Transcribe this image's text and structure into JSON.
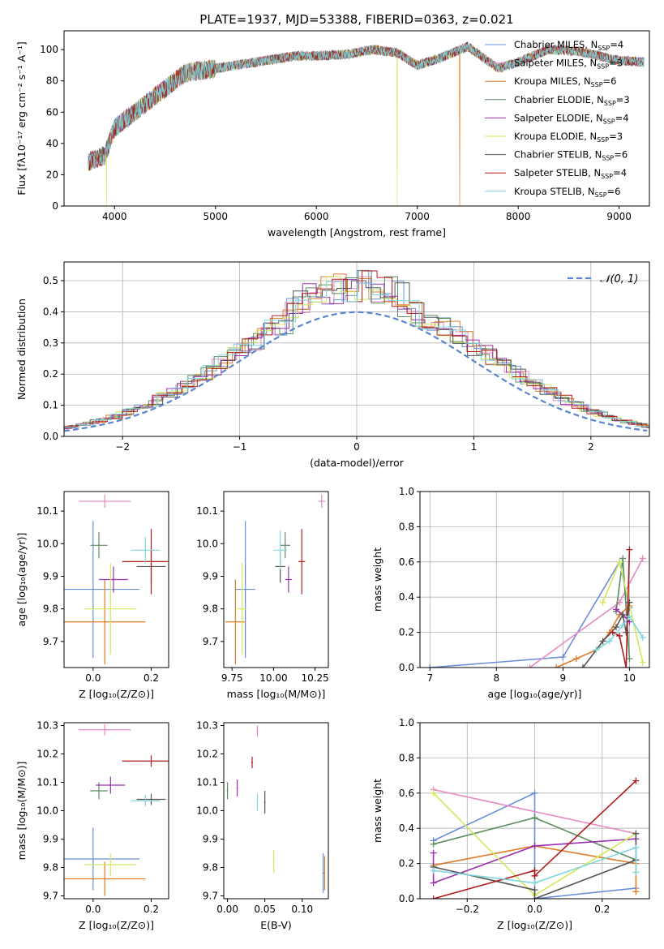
{
  "figure": {
    "title": "PLATE=1937, MJD=53388, FIBERID=0363, z=0.021"
  },
  "colors": {
    "Chabrier MILES": "#6a8fd8",
    "Salpeter MILES": "#e78ac3",
    "Kroupa MILES": "#e07b2a",
    "Chabrier ELODIE": "#5e8c61",
    "Salpeter ELODIE": "#9b30b0",
    "Kroupa ELODIE": "#d4e85c",
    "Chabrier STELIB": "#555555",
    "Salpeter STELIB": "#b01c1c",
    "Kroupa STELIB": "#7fd6dc"
  },
  "chart_data": [
    {
      "id": "spectrum",
      "type": "line",
      "title": "PLATE=1937, MJD=53388, FIBERID=0363, z=0.021",
      "xlabel": "wavelength [Angstrom, rest frame]",
      "ylabel": "Flux [fλ10⁻¹⁷ erg cm⁻² s⁻¹ A⁻¹]",
      "xlim": [
        3500,
        9300
      ],
      "ylim": [
        0,
        112
      ],
      "xticks": [
        "4000",
        "5000",
        "6000",
        "7000",
        "8000",
        "9000"
      ],
      "yticks": [
        "0",
        "20",
        "40",
        "60",
        "80",
        "100"
      ],
      "legend_position": "top-right",
      "grid": false,
      "legend": [
        {
          "label": "Chabrier MILES, N",
          "sub": "SSP",
          "tail": "=4"
        },
        {
          "label": "Salpeter MILES, N",
          "sub": "SSP",
          "tail": "=3"
        },
        {
          "label": "Kroupa MILES, N",
          "sub": "SSP",
          "tail": "=6"
        },
        {
          "label": "Chabrier ELODIE, N",
          "sub": "SSP",
          "tail": "=3"
        },
        {
          "label": "Salpeter ELODIE, N",
          "sub": "SSP",
          "tail": "=4"
        },
        {
          "label": "Kroupa ELODIE, N",
          "sub": "SSP",
          "tail": "=3"
        },
        {
          "label": "Chabrier STELIB, N",
          "sub": "SSP",
          "tail": "=6"
        },
        {
          "label": "Salpeter STELIB, N",
          "sub": "SSP",
          "tail": "=4"
        },
        {
          "label": "Kroupa STELIB, N",
          "sub": "SSP",
          "tail": "=6"
        }
      ],
      "continuum_x": [
        3740,
        3800,
        3900,
        4000,
        4100,
        4300,
        4500,
        4700,
        5000,
        5200,
        5500,
        5800,
        6000,
        6300,
        6563,
        6800,
        7000,
        7200,
        7500,
        7800,
        8000,
        8300,
        8600,
        9000,
        9250
      ],
      "continuum_y": [
        28,
        30,
        32,
        50,
        55,
        65,
        75,
        85,
        88,
        90,
        93,
        96,
        96,
        97,
        100,
        98,
        90,
        94,
        102,
        88,
        92,
        100,
        99,
        93,
        92
      ],
      "dropouts": [
        {
          "series": "Kroupa ELODIE",
          "x": 6800
        },
        {
          "series": "Kroupa MILES",
          "x": 7420
        },
        {
          "series": "Kroupa ELODIE",
          "x": 3920
        }
      ]
    },
    {
      "id": "residuals",
      "type": "histogram",
      "xlabel": "(data-model)/error",
      "ylabel": "Normed distribution",
      "xlim": [
        -2.5,
        2.5
      ],
      "ylim": [
        0,
        0.56
      ],
      "xticks": [
        "−2",
        "−1",
        "0",
        "1",
        "2"
      ],
      "yticks": [
        "0.0",
        "0.1",
        "0.2",
        "0.3",
        "0.4",
        "0.5"
      ],
      "grid": true,
      "legend": "𝒩(0, 1)",
      "legend_position": "top-right",
      "gaussian": {
        "mu": 0,
        "sigma": 1
      }
    },
    {
      "id": "age-vs-z",
      "type": "errorbar",
      "xlabel": "Z [log₁₀(Z/Z⊙)]",
      "ylabel": "age  [log₁₀(age/yr)]",
      "xlim": [
        -0.1,
        0.26
      ],
      "ylim": [
        9.62,
        10.16
      ],
      "xticks": [
        [
          0.0,
          "0.0"
        ],
        [
          0.2,
          "0.2"
        ]
      ],
      "yticks": [
        [
          9.7,
          "9.7"
        ],
        [
          9.8,
          "9.8"
        ],
        [
          9.9,
          "9.9"
        ],
        [
          10.0,
          "10.0"
        ],
        [
          10.1,
          "10.1"
        ]
      ],
      "points": [
        {
          "series": "Chabrier MILES",
          "x": 0.0,
          "y": 9.86,
          "xerr": 0.16,
          "yerr": 0.21
        },
        {
          "series": "Salpeter MILES",
          "x": 0.04,
          "y": 10.13,
          "xerr": 0.09,
          "yerr": 0.02
        },
        {
          "series": "Kroupa MILES",
          "x": 0.04,
          "y": 9.76,
          "xerr": 0.14,
          "yerr": 0.13
        },
        {
          "series": "Chabrier ELODIE",
          "x": 0.02,
          "y": 9.995,
          "xerr": 0.03,
          "yerr": 0.04
        },
        {
          "series": "Salpeter ELODIE",
          "x": 0.07,
          "y": 9.89,
          "xerr": 0.05,
          "yerr": 0.04
        },
        {
          "series": "Kroupa ELODIE",
          "x": 0.06,
          "y": 9.8,
          "xerr": 0.09,
          "yerr": 0.14
        },
        {
          "series": "Chabrier STELIB",
          "x": 0.2,
          "y": 9.93,
          "xerr": 0.05,
          "yerr": 0.05
        },
        {
          "series": "Salpeter STELIB",
          "x": 0.2,
          "y": 9.945,
          "xerr": 0.1,
          "yerr": 0.1
        },
        {
          "series": "Kroupa STELIB",
          "x": 0.18,
          "y": 9.98,
          "xerr": 0.05,
          "yerr": 0.04
        }
      ]
    },
    {
      "id": "age-vs-mass",
      "type": "errorbar",
      "xlabel": "mass [log₁₀(M/M⊙)]",
      "ylabel": "",
      "xlim": [
        9.7,
        10.33
      ],
      "ylim": [
        9.62,
        10.16
      ],
      "xticks": [
        [
          9.75,
          "9.75"
        ],
        [
          10.0,
          "10.00"
        ],
        [
          10.25,
          "10.25"
        ]
      ],
      "yticks": [
        [
          9.7,
          "9.7"
        ],
        [
          9.8,
          "9.8"
        ],
        [
          9.9,
          "9.9"
        ],
        [
          10.0,
          "10.0"
        ],
        [
          10.1,
          "10.1"
        ]
      ],
      "points": [
        {
          "series": "Chabrier MILES",
          "x": 9.83,
          "y": 9.86,
          "xerr": 0.06,
          "yerr": 0.21
        },
        {
          "series": "Salpeter MILES",
          "x": 10.29,
          "y": 10.13,
          "xerr": 0.02,
          "yerr": 0.02
        },
        {
          "series": "Kroupa MILES",
          "x": 9.77,
          "y": 9.76,
          "xerr": 0.06,
          "yerr": 0.13
        },
        {
          "series": "Chabrier ELODIE",
          "x": 10.07,
          "y": 9.995,
          "xerr": 0.03,
          "yerr": 0.04
        },
        {
          "series": "Salpeter ELODIE",
          "x": 10.09,
          "y": 9.89,
          "xerr": 0.02,
          "yerr": 0.04
        },
        {
          "series": "Kroupa ELODIE",
          "x": 9.81,
          "y": 9.8,
          "xerr": 0.03,
          "yerr": 0.14
        },
        {
          "series": "Chabrier STELIB",
          "x": 10.04,
          "y": 9.93,
          "xerr": 0.03,
          "yerr": 0.05
        },
        {
          "series": "Salpeter STELIB",
          "x": 10.17,
          "y": 9.945,
          "xerr": 0.02,
          "yerr": 0.1
        },
        {
          "series": "Kroupa STELIB",
          "x": 10.04,
          "y": 9.98,
          "xerr": 0.04,
          "yerr": 0.06
        }
      ]
    },
    {
      "id": "weight-vs-age",
      "type": "line",
      "xlabel": "age  [log₁₀(age/yr)]",
      "ylabel": "mass weight",
      "xlim": [
        6.85,
        10.3
      ],
      "ylim": [
        0,
        1
      ],
      "xticks": [
        [
          7,
          "7"
        ],
        [
          8,
          "8"
        ],
        [
          9,
          "9"
        ],
        [
          10,
          "10"
        ]
      ],
      "yticks": [
        [
          0,
          "0.0"
        ],
        [
          0.2,
          "0.2"
        ],
        [
          0.4,
          "0.4"
        ],
        [
          0.6,
          "0.6"
        ],
        [
          0.8,
          "0.8"
        ],
        [
          1.0,
          "1.0"
        ]
      ],
      "grid": true,
      "series": [
        {
          "name": "Chabrier MILES",
          "x": [
            7.0,
            9.0,
            9.85,
            10.0
          ],
          "y": [
            0.0,
            0.06,
            0.6,
            0.34
          ]
        },
        {
          "name": "Salpeter MILES",
          "x": [
            8.5,
            9.85,
            10.2
          ],
          "y": [
            0.0,
            0.37,
            0.62
          ]
        },
        {
          "name": "Kroupa MILES",
          "x": [
            8.9,
            9.2,
            9.5,
            9.7,
            9.85,
            10.0
          ],
          "y": [
            0.0,
            0.05,
            0.1,
            0.2,
            0.3,
            0.35
          ]
        },
        {
          "name": "Chabrier ELODIE",
          "x": [
            9.8,
            9.9,
            10.0
          ],
          "y": [
            0.32,
            0.62,
            0.05
          ]
        },
        {
          "name": "Salpeter ELODIE",
          "x": [
            9.8,
            9.9,
            10.0
          ],
          "y": [
            0.33,
            0.3,
            0.26
          ]
        },
        {
          "name": "Kroupa ELODIE",
          "x": [
            9.6,
            9.85,
            10.2
          ],
          "y": [
            0.37,
            0.6,
            0.03
          ]
        },
        {
          "name": "Chabrier STELIB",
          "x": [
            9.3,
            9.6,
            9.8,
            9.9,
            9.95,
            10.0
          ],
          "y": [
            0.0,
            0.15,
            0.23,
            0.3,
            0.2,
            0.37
          ]
        },
        {
          "name": "Salpeter STELIB",
          "x": [
            9.75,
            9.85,
            9.95,
            10.0
          ],
          "y": [
            0.2,
            0.18,
            0.0,
            0.67
          ]
        },
        {
          "name": "Kroupa STELIB",
          "x": [
            9.5,
            9.7,
            9.9,
            10.0,
            10.2
          ],
          "y": [
            0.1,
            0.15,
            0.24,
            0.29,
            0.17
          ]
        }
      ]
    },
    {
      "id": "mass-vs-z",
      "type": "errorbar",
      "xlabel": "Z [log₁₀(Z/Z⊙)]",
      "ylabel": "mass [log₁₀(M/M⊙)]",
      "xlim": [
        -0.1,
        0.26
      ],
      "ylim": [
        9.69,
        10.31
      ],
      "xticks": [
        [
          0.0,
          "0.0"
        ],
        [
          0.2,
          "0.2"
        ]
      ],
      "yticks": [
        [
          9.7,
          "9.7"
        ],
        [
          9.8,
          "9.8"
        ],
        [
          9.9,
          "9.9"
        ],
        [
          10.0,
          "10.0"
        ],
        [
          10.1,
          "10.1"
        ],
        [
          10.2,
          "10.2"
        ],
        [
          10.3,
          "10.3"
        ]
      ],
      "points": [
        {
          "series": "Chabrier MILES",
          "x": 0.0,
          "y": 9.83,
          "xerr": 0.16,
          "yerr": 0.11
        },
        {
          "series": "Salpeter MILES",
          "x": 0.04,
          "y": 10.285,
          "xerr": 0.09,
          "yerr": 0.02
        },
        {
          "series": "Kroupa MILES",
          "x": 0.04,
          "y": 9.76,
          "xerr": 0.14,
          "yerr": 0.06
        },
        {
          "series": "Chabrier ELODIE",
          "x": 0.02,
          "y": 10.07,
          "xerr": 0.03,
          "yerr": 0.03
        },
        {
          "series": "Salpeter ELODIE",
          "x": 0.06,
          "y": 10.09,
          "xerr": 0.05,
          "yerr": 0.03
        },
        {
          "series": "Kroupa ELODIE",
          "x": 0.06,
          "y": 9.81,
          "xerr": 0.09,
          "yerr": 0.04
        },
        {
          "series": "Chabrier STELIB",
          "x": 0.2,
          "y": 10.04,
          "xerr": 0.05,
          "yerr": 0.02
        },
        {
          "series": "Salpeter STELIB",
          "x": 0.2,
          "y": 10.175,
          "xerr": 0.1,
          "yerr": 0.02
        },
        {
          "series": "Kroupa STELIB",
          "x": 0.18,
          "y": 10.035,
          "xerr": 0.05,
          "yerr": 0.02
        }
      ]
    },
    {
      "id": "mass-vs-ebv",
      "type": "errorbar",
      "xlabel": "E(B-V)",
      "ylabel": "",
      "xlim": [
        -0.005,
        0.135
      ],
      "ylim": [
        9.69,
        10.31
      ],
      "xticks": [
        [
          0.0,
          "0.00"
        ],
        [
          0.05,
          "0.05"
        ],
        [
          0.1,
          "0.10"
        ]
      ],
      "yticks": [
        [
          9.7,
          "9.7"
        ],
        [
          9.8,
          "9.8"
        ],
        [
          9.9,
          "9.9"
        ],
        [
          10.0,
          "10.0"
        ],
        [
          10.1,
          "10.1"
        ],
        [
          10.2,
          "10.2"
        ],
        [
          10.3,
          "10.3"
        ]
      ],
      "points": [
        {
          "series": "Chabrier MILES",
          "x": 0.128,
          "y": 9.78,
          "xerr": 0.001,
          "yerr": 0.07
        },
        {
          "series": "Salpeter MILES",
          "x": 0.04,
          "y": 10.28,
          "xerr": 0.001,
          "yerr": 0.02
        },
        {
          "series": "Kroupa MILES",
          "x": 0.13,
          "y": 9.78,
          "xerr": 0.001,
          "yerr": 0.06
        },
        {
          "series": "Chabrier ELODIE",
          "x": 0.0,
          "y": 10.07,
          "xerr": 0.001,
          "yerr": 0.03
        },
        {
          "series": "Salpeter ELODIE",
          "x": 0.013,
          "y": 10.08,
          "xerr": 0.001,
          "yerr": 0.03
        },
        {
          "series": "Kroupa ELODIE",
          "x": 0.062,
          "y": 9.82,
          "xerr": 0.001,
          "yerr": 0.04
        },
        {
          "series": "Chabrier STELIB",
          "x": 0.05,
          "y": 10.03,
          "xerr": 0.001,
          "yerr": 0.04
        },
        {
          "series": "Salpeter STELIB",
          "x": 0.033,
          "y": 10.17,
          "xerr": 0.001,
          "yerr": 0.02
        },
        {
          "series": "Kroupa STELIB",
          "x": 0.04,
          "y": 10.03,
          "xerr": 0.001,
          "yerr": 0.03
        }
      ]
    },
    {
      "id": "weight-vs-z",
      "type": "line",
      "xlabel": "Z [log₁₀(Z/Z⊙)]",
      "ylabel": "mass weight",
      "xlim": [
        -0.34,
        0.34
      ],
      "ylim": [
        0,
        1
      ],
      "xticks": [
        [
          -0.2,
          "−0.2"
        ],
        [
          0.0,
          "0.0"
        ],
        [
          0.2,
          "0.2"
        ]
      ],
      "yticks": [
        [
          0,
          "0.0"
        ],
        [
          0.2,
          "0.2"
        ],
        [
          0.4,
          "0.4"
        ],
        [
          0.6,
          "0.6"
        ],
        [
          0.8,
          "0.8"
        ],
        [
          1.0,
          "1.0"
        ]
      ],
      "grid": true,
      "series": [
        {
          "name": "Chabrier MILES",
          "x": [
            -0.3,
            0.0,
            0.0,
            0.3
          ],
          "y": [
            0.33,
            0.6,
            0.0,
            0.06
          ]
        },
        {
          "name": "Salpeter MILES",
          "x": [
            -0.3,
            0.3
          ],
          "y": [
            0.62,
            0.37
          ]
        },
        {
          "name": "Kroupa MILES",
          "x": [
            -0.3,
            0.0,
            0.3,
            0.3
          ],
          "y": [
            0.19,
            0.3,
            0.2,
            0.04
          ]
        },
        {
          "name": "Chabrier ELODIE",
          "x": [
            -0.3,
            0.0,
            0.3
          ],
          "y": [
            0.31,
            0.46,
            0.22
          ]
        },
        {
          "name": "Salpeter ELODIE",
          "x": [
            -0.3,
            -0.3,
            0.0,
            0.3
          ],
          "y": [
            0.26,
            0.09,
            0.3,
            0.34
          ]
        },
        {
          "name": "Kroupa ELODIE",
          "x": [
            -0.3,
            0.0,
            0.3
          ],
          "y": [
            0.6,
            0.02,
            0.37
          ]
        },
        {
          "name": "Chabrier STELIB",
          "x": [
            -0.3,
            0.0,
            0.0,
            0.3,
            0.3
          ],
          "y": [
            0.18,
            0.05,
            0.0,
            0.22,
            0.37
          ]
        },
        {
          "name": "Salpeter STELIB",
          "x": [
            -0.3,
            0.0,
            0.0,
            0.3
          ],
          "y": [
            0.0,
            0.16,
            0.13,
            0.67
          ]
        },
        {
          "name": "Kroupa STELIB",
          "x": [
            -0.3,
            0.0,
            0.3,
            0.3
          ],
          "y": [
            0.16,
            0.09,
            0.29,
            0.15
          ]
        }
      ]
    }
  ]
}
